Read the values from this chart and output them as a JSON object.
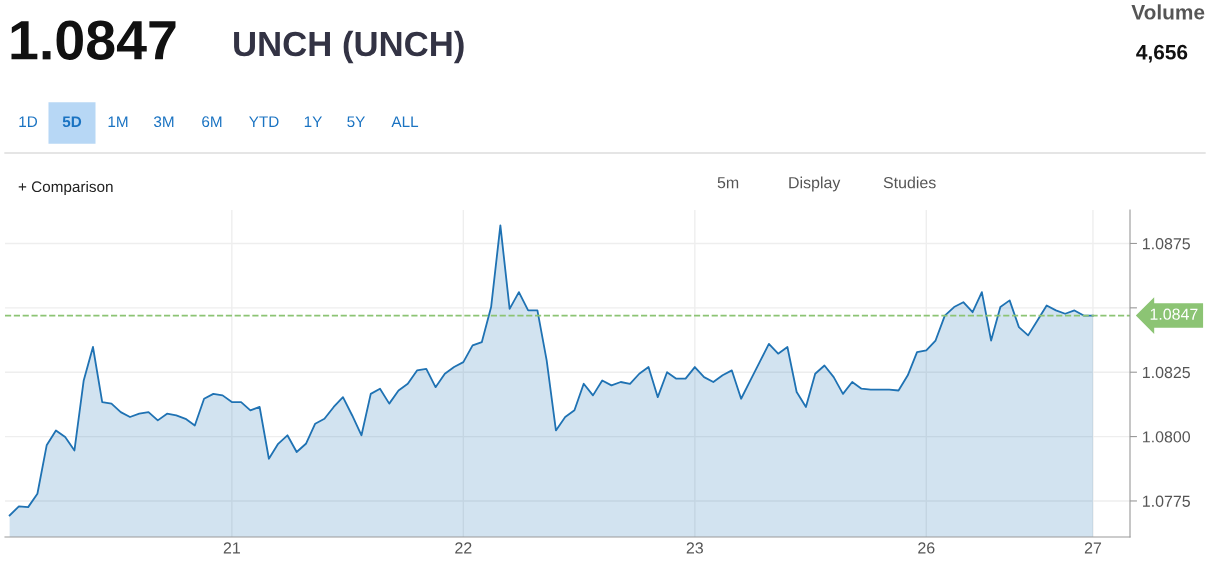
{
  "chart_data": {
    "type": "area",
    "title": "1.0847",
    "subtitle": "UNCH (UNCH)",
    "annotations": [
      "Volume",
      "4,656",
      "1D",
      "5D",
      "1M",
      "3M",
      "6M",
      "YTD",
      "1Y",
      "5Y",
      "ALL",
      "+ Comparison",
      "5m",
      "Display",
      "Studies"
    ],
    "categories": [
      null,
      null,
      null,
      null,
      null,
      null,
      null,
      null,
      null,
      null,
      null,
      null,
      null,
      null,
      null,
      null,
      null,
      null,
      null,
      null,
      null,
      null,
      null,
      null,
      "21",
      null,
      null,
      null,
      null,
      null,
      null,
      null,
      null,
      null,
      null,
      null,
      null,
      null,
      null,
      null,
      null,
      null,
      null,
      null,
      null,
      null,
      null,
      null,
      null,
      "22",
      null,
      null,
      null,
      null,
      null,
      null,
      null,
      null,
      null,
      null,
      null,
      null,
      null,
      null,
      null,
      null,
      null,
      null,
      null,
      null,
      null,
      null,
      null,
      null,
      "23",
      null,
      null,
      null,
      null,
      null,
      null,
      null,
      null,
      null,
      null,
      null,
      null,
      null,
      null,
      null,
      null,
      null,
      null,
      null,
      null,
      null,
      null,
      null,
      null,
      "26",
      null,
      null,
      null,
      null,
      null,
      null,
      null,
      null,
      null,
      null,
      null,
      null,
      null,
      null,
      null,
      null,
      null,
      "27"
    ],
    "ylim": [
      1.0761,
      1.0888
    ],
    "yticks": [
      1.0775,
      {
        "value": 1.08,
        "label": "1.0800"
      },
      1.0825,
      {
        "value": 1.085,
        "label": null
      },
      1.0875
    ],
    "grid": true,
    "marker": "none",
    "line_style": "solid",
    "ref_lines": [
      {
        "axis": "y",
        "value": 1.0847,
        "label": "1.0847",
        "color": "#8cc474",
        "line_style": "dashed"
      }
    ],
    "series": [
      {
        "color": "#1f72b3",
        "values": [
          1.07694,
          1.07729,
          1.07726,
          1.07778,
          1.07966,
          1.08024,
          1.07998,
          1.07946,
          1.08218,
          1.08348,
          1.08134,
          1.08128,
          1.08095,
          1.08076,
          1.08089,
          1.08095,
          1.08063,
          1.08089,
          1.08082,
          1.08069,
          1.08043,
          1.08147,
          1.08166,
          1.0816,
          1.08134,
          1.08134,
          1.08102,
          1.08115,
          1.07914,
          1.07972,
          1.08005,
          1.0794,
          1.07972,
          1.0805,
          1.08069,
          1.08115,
          1.08153,
          1.08082,
          1.08005,
          1.08166,
          1.08186,
          1.08128,
          1.08179,
          1.08205,
          1.08257,
          1.08263,
          1.08192,
          1.08244,
          1.0827,
          1.08289,
          1.08354,
          1.08367,
          1.08503,
          1.0882,
          1.08496,
          1.08561,
          1.0849,
          1.0849,
          1.08296,
          1.08024,
          1.08076,
          1.08102,
          1.08205,
          1.0816,
          1.08218,
          1.08199,
          1.08212,
          1.08205,
          1.08244,
          1.0827,
          1.08153,
          1.0825,
          1.08225,
          1.08225,
          1.0827,
          1.08231,
          1.08212,
          1.08238,
          1.08257,
          1.08147,
          1.08218,
          1.08289,
          1.0836,
          1.08322,
          1.08348,
          1.08173,
          1.08115,
          1.08244,
          1.08276,
          1.08231,
          1.08166,
          1.08212,
          1.08186,
          1.08182,
          1.08182,
          1.08182,
          1.08179,
          1.08238,
          1.08328,
          1.08335,
          1.08373,
          1.0847,
          1.08503,
          1.08522,
          1.08483,
          1.08561,
          1.08373,
          1.08503,
          1.08529,
          1.08425,
          1.08393,
          1.08451,
          1.08509,
          1.0849,
          1.08477,
          1.0849,
          1.0847,
          1.0847
        ]
      }
    ]
  }
}
